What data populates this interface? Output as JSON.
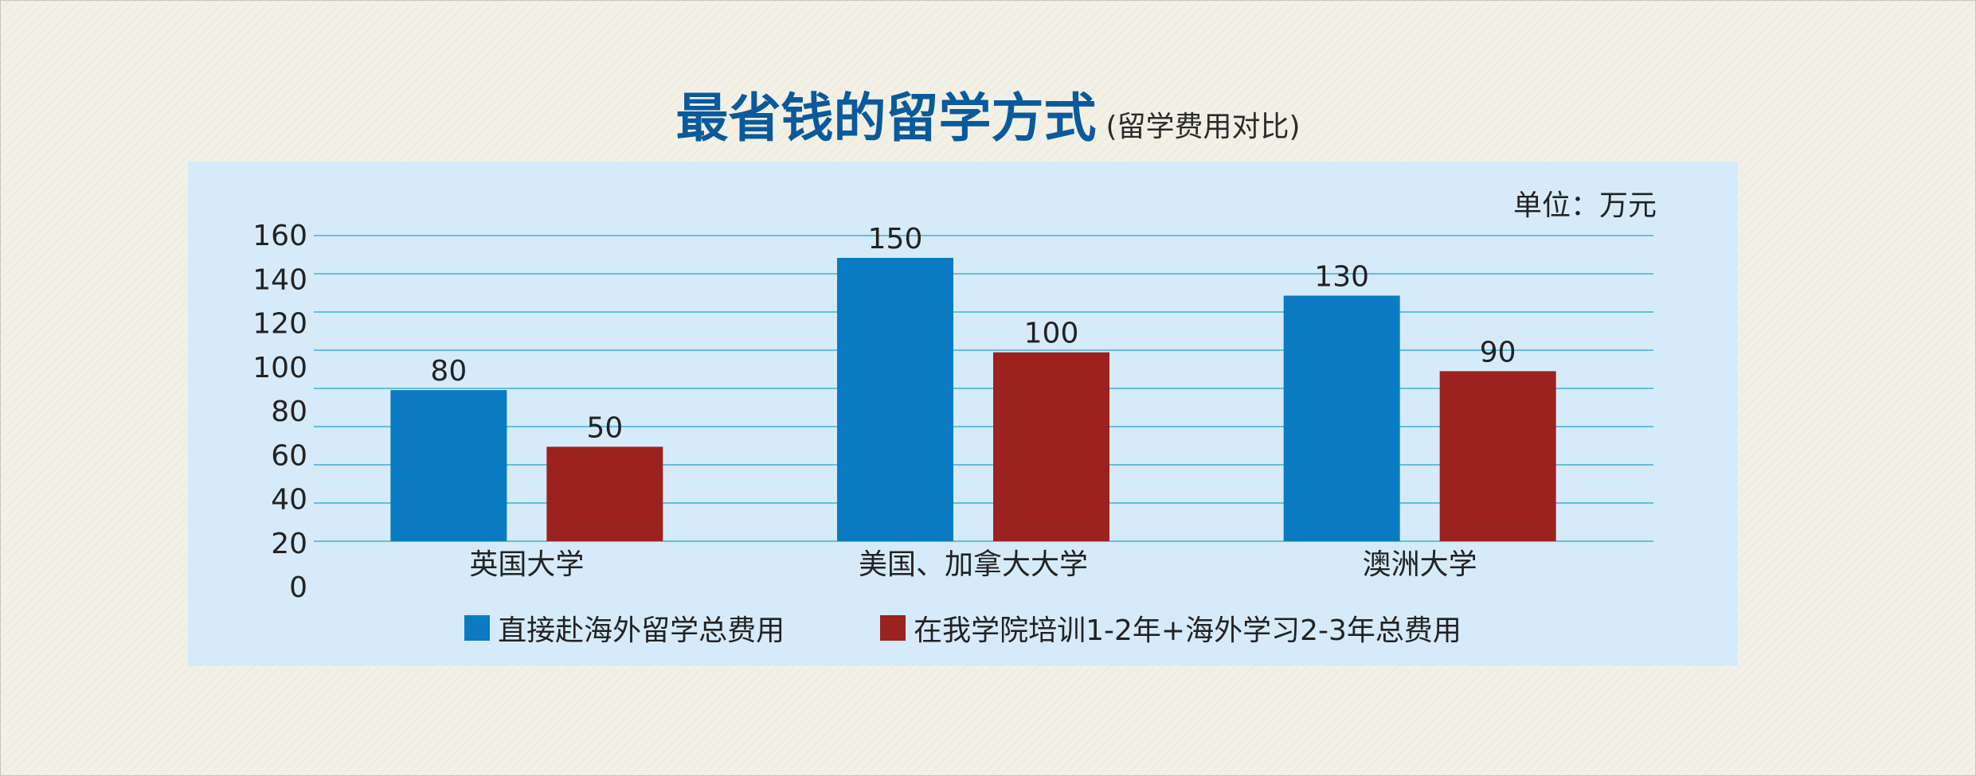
{
  "title": "最省钱的留学方式",
  "subtitle": "(留学费用对比)",
  "unit": "单位：万元",
  "chart_data": {
    "type": "bar",
    "categories": [
      "英国大学",
      "美国、加拿大大学",
      "澳洲大学"
    ],
    "series": [
      {
        "name": "直接赴海外留学总费用",
        "values": [
          80,
          150,
          130
        ],
        "color": "#0a7bc2"
      },
      {
        "name": "在我学院培训1-2年+海外学习2-3年总费用",
        "values": [
          50,
          100,
          90
        ],
        "color": "#9b221e"
      }
    ],
    "data_labels": [
      [
        "80",
        "150",
        "130"
      ],
      [
        "50",
        "100",
        "90"
      ]
    ],
    "yticks": [
      "0",
      "20",
      "40",
      "60",
      "80",
      "100",
      "120",
      "140",
      "160"
    ],
    "ylim": [
      0,
      160
    ],
    "grid": true,
    "legend_position": "bottom",
    "gridline_color": "#62bfe0"
  }
}
